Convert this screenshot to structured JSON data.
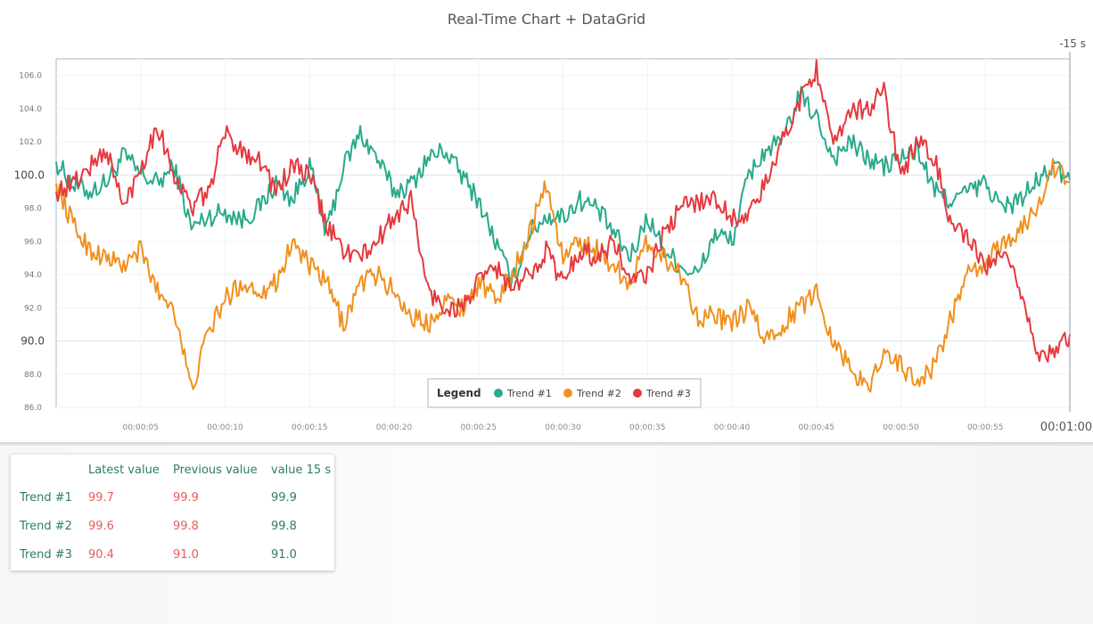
{
  "title": "Real-Time Chart + DataGrid",
  "chart_data": {
    "type": "line",
    "title": "Real-Time Chart + DataGrid",
    "time_window_label": "-15 s",
    "y_major_ticks": [
      90.0,
      100.0
    ],
    "y_minor_ticks": [
      86.0,
      88.0,
      92.0,
      94.0,
      96.0,
      98.0,
      102.0,
      104.0,
      106.0
    ],
    "ylim": [
      86,
      107
    ],
    "x_tick_labels": [
      "00:00:05",
      "00:00:10",
      "00:00:15",
      "00:00:20",
      "00:00:25",
      "00:00:30",
      "00:00:35",
      "00:00:40",
      "00:00:45",
      "00:00:50",
      "00:00:55"
    ],
    "x_end_label": "00:01:00",
    "xlim": [
      0,
      60
    ],
    "legend": {
      "title": "Legend",
      "placement": "bottom-center"
    },
    "series": [
      {
        "name": "Trend #1",
        "color": "#2aa98b",
        "points": [
          [
            0,
            100.8
          ],
          [
            1,
            99.4
          ],
          [
            2,
            99.0
          ],
          [
            3,
            99.6
          ],
          [
            4,
            101.2
          ],
          [
            5,
            100.0
          ],
          [
            6,
            99.5
          ],
          [
            7,
            100.5
          ],
          [
            8,
            96.8
          ],
          [
            9,
            97.5
          ],
          [
            10,
            97.8
          ],
          [
            11,
            97.3
          ],
          [
            12,
            98.0
          ],
          [
            13,
            99.5
          ],
          [
            14,
            98.5
          ],
          [
            15,
            100.6
          ],
          [
            16,
            96.5
          ],
          [
            17,
            100.5
          ],
          [
            18,
            102.5
          ],
          [
            19,
            101.0
          ],
          [
            20,
            99.0
          ],
          [
            21,
            99.4
          ],
          [
            22,
            101.0
          ],
          [
            23,
            101.5
          ],
          [
            24,
            100.0
          ],
          [
            25,
            98.5
          ],
          [
            26,
            96.0
          ],
          [
            27,
            93.5
          ],
          [
            28,
            96.5
          ],
          [
            29,
            97.5
          ],
          [
            30,
            97.5
          ],
          [
            31,
            98.5
          ],
          [
            32,
            98.0
          ],
          [
            33,
            96.5
          ],
          [
            34,
            95.0
          ],
          [
            35,
            97.5
          ],
          [
            36,
            95.5
          ],
          [
            37,
            94.5
          ],
          [
            38,
            94.0
          ],
          [
            39,
            96.5
          ],
          [
            40,
            96.0
          ],
          [
            41,
            100.0
          ],
          [
            42,
            101.5
          ],
          [
            43,
            102.0
          ],
          [
            44,
            104.8
          ],
          [
            45,
            103.5
          ],
          [
            46,
            101.0
          ],
          [
            47,
            102.0
          ],
          [
            48,
            101.0
          ],
          [
            49,
            100.5
          ],
          [
            50,
            101.0
          ],
          [
            51,
            101.5
          ],
          [
            52,
            99.0
          ],
          [
            53,
            98.5
          ],
          [
            54,
            99.0
          ],
          [
            55,
            99.5
          ],
          [
            56,
            98.0
          ],
          [
            57,
            98.5
          ],
          [
            58,
            99.5
          ],
          [
            59,
            100.5
          ],
          [
            60,
            99.7
          ]
        ]
      },
      {
        "name": "Trend #2",
        "color": "#f0901e",
        "points": [
          [
            0,
            99.5
          ],
          [
            1,
            97.0
          ],
          [
            2,
            95.5
          ],
          [
            3,
            95.0
          ],
          [
            4,
            94.5
          ],
          [
            5,
            95.5
          ],
          [
            6,
            93.0
          ],
          [
            7,
            92.0
          ],
          [
            8,
            87.0
          ],
          [
            9,
            90.5
          ],
          [
            10,
            92.5
          ],
          [
            11,
            93.5
          ],
          [
            12,
            93.0
          ],
          [
            13,
            93.5
          ],
          [
            14,
            96.0
          ],
          [
            15,
            94.5
          ],
          [
            16,
            93.5
          ],
          [
            17,
            91.0
          ],
          [
            18,
            93.5
          ],
          [
            19,
            94.0
          ],
          [
            20,
            93.0
          ],
          [
            21,
            91.5
          ],
          [
            22,
            91.0
          ],
          [
            23,
            92.5
          ],
          [
            24,
            92.0
          ],
          [
            25,
            93.5
          ],
          [
            26,
            92.5
          ],
          [
            27,
            94.0
          ],
          [
            28,
            96.5
          ],
          [
            29,
            99.5
          ],
          [
            30,
            95.0
          ],
          [
            31,
            96.0
          ],
          [
            32,
            95.5
          ],
          [
            33,
            94.5
          ],
          [
            34,
            93.5
          ],
          [
            35,
            96.0
          ],
          [
            36,
            95.0
          ],
          [
            37,
            94.0
          ],
          [
            38,
            91.5
          ],
          [
            39,
            91.5
          ],
          [
            40,
            91.0
          ],
          [
            41,
            92.0
          ],
          [
            42,
            90.0
          ],
          [
            43,
            91.0
          ],
          [
            44,
            92.0
          ],
          [
            45,
            93.0
          ],
          [
            46,
            90.0
          ],
          [
            47,
            88.5
          ],
          [
            48,
            87.0
          ],
          [
            49,
            89.5
          ],
          [
            50,
            88.5
          ],
          [
            51,
            87.5
          ],
          [
            52,
            88.5
          ],
          [
            53,
            91.5
          ],
          [
            54,
            94.0
          ],
          [
            55,
            94.5
          ],
          [
            56,
            96.0
          ],
          [
            57,
            96.5
          ],
          [
            58,
            98.0
          ],
          [
            59,
            100.5
          ],
          [
            60,
            99.6
          ]
        ]
      },
      {
        "name": "Trend #3",
        "color": "#e5393e",
        "points": [
          [
            0,
            99.0
          ],
          [
            1,
            99.5
          ],
          [
            2,
            100.5
          ],
          [
            3,
            101.5
          ],
          [
            4,
            98.0
          ],
          [
            5,
            100.5
          ],
          [
            6,
            103.0
          ],
          [
            7,
            100.0
          ],
          [
            8,
            98.0
          ],
          [
            9,
            99.0
          ],
          [
            10,
            102.5
          ],
          [
            11,
            101.5
          ],
          [
            12,
            101.0
          ],
          [
            13,
            99.0
          ],
          [
            14,
            100.5
          ],
          [
            15,
            100.0
          ],
          [
            16,
            97.0
          ],
          [
            17,
            95.5
          ],
          [
            18,
            95.0
          ],
          [
            19,
            96.0
          ],
          [
            20,
            97.5
          ],
          [
            21,
            98.5
          ],
          [
            22,
            93.0
          ],
          [
            23,
            92.0
          ],
          [
            24,
            92.0
          ],
          [
            25,
            93.5
          ],
          [
            26,
            94.5
          ],
          [
            27,
            93.0
          ],
          [
            28,
            94.0
          ],
          [
            29,
            95.5
          ],
          [
            30,
            93.5
          ],
          [
            31,
            95.5
          ],
          [
            32,
            95.0
          ],
          [
            33,
            96.0
          ],
          [
            34,
            93.5
          ],
          [
            35,
            94.0
          ],
          [
            36,
            96.5
          ],
          [
            37,
            98.0
          ],
          [
            38,
            98.5
          ],
          [
            39,
            98.5
          ],
          [
            40,
            97.5
          ],
          [
            41,
            97.5
          ],
          [
            42,
            99.5
          ],
          [
            43,
            102.0
          ],
          [
            44,
            104.5
          ],
          [
            45,
            106.5
          ],
          [
            46,
            101.5
          ],
          [
            47,
            104.0
          ],
          [
            48,
            104.0
          ],
          [
            49,
            105.0
          ],
          [
            50,
            100.0
          ],
          [
            51,
            102.0
          ],
          [
            52,
            101.0
          ],
          [
            53,
            97.0
          ],
          [
            54,
            96.0
          ],
          [
            55,
            94.5
          ],
          [
            56,
            95.0
          ],
          [
            57,
            93.5
          ],
          [
            58,
            89.5
          ],
          [
            59,
            89.0
          ],
          [
            60,
            90.4
          ]
        ]
      }
    ]
  },
  "grid": {
    "headers": [
      "",
      "Latest value",
      "Previous value",
      "value 15 s"
    ],
    "rows": [
      {
        "label": "Trend #1",
        "latest": "99.7",
        "previous": "99.9",
        "value15": "99.9"
      },
      {
        "label": "Trend #2",
        "latest": "99.6",
        "previous": "99.8",
        "value15": "99.8"
      },
      {
        "label": "Trend #3",
        "latest": "90.4",
        "previous": "91.0",
        "value15": "91.0"
      }
    ]
  }
}
